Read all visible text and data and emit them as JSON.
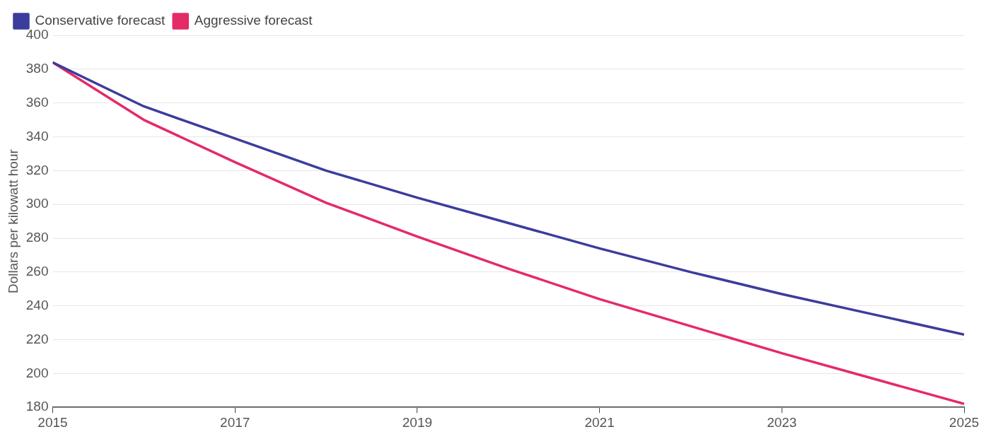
{
  "chart_data": {
    "type": "line",
    "ylabel": "Dollars per kilowatt hour",
    "x": [
      2015,
      2016,
      2017,
      2018,
      2019,
      2020,
      2021,
      2022,
      2023,
      2024,
      2025
    ],
    "series": [
      {
        "name": "Conservative forecast",
        "color": "#3a3d9c",
        "values": [
          384,
          358,
          339,
          320,
          304,
          289,
          274,
          260,
          247,
          235,
          223
        ]
      },
      {
        "name": "Aggressive forecast",
        "color": "#e52a68",
        "values": [
          384,
          350,
          325,
          301,
          281,
          262,
          244,
          228,
          212,
          197,
          182
        ]
      }
    ],
    "xlim": [
      2015,
      2025
    ],
    "xticks": [
      2015,
      2017,
      2019,
      2021,
      2023,
      2025
    ],
    "ylim": [
      180,
      400
    ],
    "yticks": [
      180,
      200,
      220,
      240,
      260,
      280,
      300,
      320,
      340,
      360,
      380,
      400
    ],
    "grid": "y",
    "legend": "top left",
    "marker": "none",
    "line_style": "solid"
  }
}
